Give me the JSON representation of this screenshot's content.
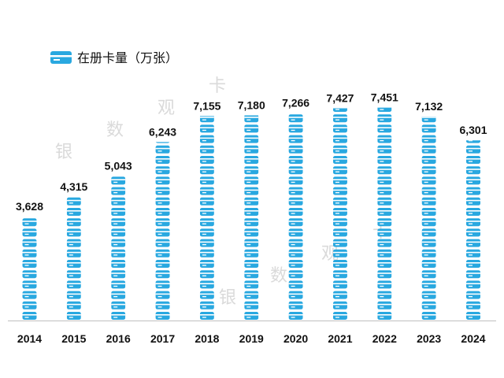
{
  "chart_data": {
    "type": "bar",
    "categories": [
      "2014",
      "2015",
      "2016",
      "2017",
      "2018",
      "2019",
      "2020",
      "2021",
      "2022",
      "2023",
      "2024"
    ],
    "series": [
      {
        "name": "在册卡量（万张）",
        "values": [
          3628,
          4315,
          5043,
          6243,
          7155,
          7180,
          7266,
          7427,
          7451,
          7132,
          6301
        ],
        "value_labels": [
          "3,628",
          "4,315",
          "5,043",
          "6,243",
          "7,155",
          "7,180",
          "7,266",
          "7,427",
          "7,451",
          "7,132",
          "6,301"
        ]
      }
    ],
    "ylim": [
      0,
      8000
    ],
    "grid": false,
    "legend": "top-left",
    "bar_style": "stacked-card-icons",
    "colors": {
      "bar": "#29A8E0",
      "stripe": "#ffffff",
      "axis": "#bfbfbf",
      "text": "#111111"
    }
  },
  "watermark": {
    "text": [
      "银",
      "数",
      "观",
      "卡"
    ]
  }
}
